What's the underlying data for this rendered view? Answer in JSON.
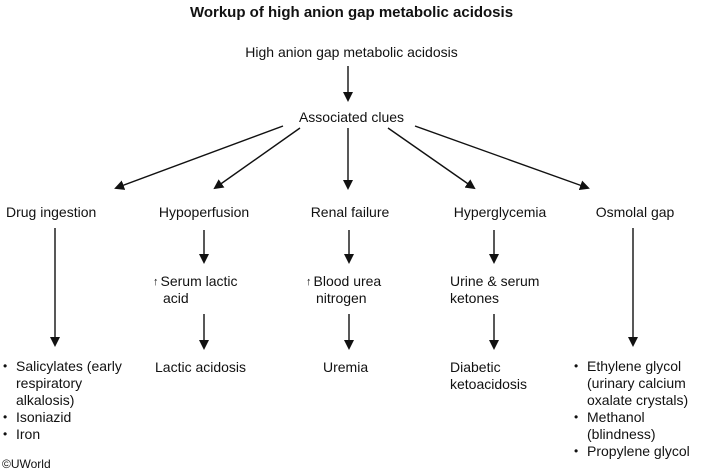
{
  "title": "Workup of high anion gap metabolic acidosis",
  "root": "High anion gap metabolic acidosis",
  "clues": "Associated clues",
  "categories": {
    "drug": {
      "label": "Drug ingestion",
      "outcomes": [
        "Salicylates (early",
        "respiratory",
        "alkalosis)",
        "Isoniazid",
        "Iron"
      ]
    },
    "hypoperfusion": {
      "label": "Hypoperfusion",
      "mid_arrow": "↑",
      "mid_line1": "Serum lactic",
      "mid_line2": "acid",
      "outcome": "Lactic acidosis"
    },
    "renal": {
      "label": "Renal failure",
      "mid_arrow": "↑",
      "mid_line1": "Blood urea",
      "mid_line2": "nitrogen",
      "outcome": "Uremia"
    },
    "hyperglycemia": {
      "label": "Hyperglycemia",
      "mid_line1": "Urine & serum",
      "mid_line2": "ketones",
      "outcome_line1": "Diabetic",
      "outcome_line2": "ketoacidosis"
    },
    "osmolal": {
      "label": "Osmolal gap",
      "outcomes": [
        "Ethylene glycol",
        "(urinary calcium",
        "oxalate crystals)",
        "Methanol",
        "(blindness)",
        "Propylene glycol"
      ]
    }
  },
  "copyright": "©UWorld"
}
